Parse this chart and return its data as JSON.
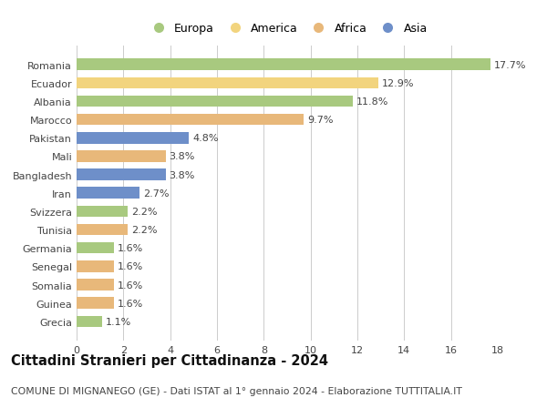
{
  "categories": [
    "Grecia",
    "Guinea",
    "Somalia",
    "Senegal",
    "Germania",
    "Tunisia",
    "Svizzera",
    "Iran",
    "Bangladesh",
    "Mali",
    "Pakistan",
    "Marocco",
    "Albania",
    "Ecuador",
    "Romania"
  ],
  "values": [
    1.1,
    1.6,
    1.6,
    1.6,
    1.6,
    2.2,
    2.2,
    2.7,
    3.8,
    3.8,
    4.8,
    9.7,
    11.8,
    12.9,
    17.7
  ],
  "continents": [
    "Europa",
    "Africa",
    "Africa",
    "Africa",
    "Europa",
    "Africa",
    "Europa",
    "Asia",
    "Asia",
    "Africa",
    "Asia",
    "Africa",
    "Europa",
    "America",
    "Europa"
  ],
  "colors": {
    "Europa": "#a8c97f",
    "America": "#f2d47e",
    "Africa": "#e8b87a",
    "Asia": "#6e8fc9"
  },
  "legend_order": [
    "Europa",
    "America",
    "Africa",
    "Asia"
  ],
  "title": "Cittadini Stranieri per Cittadinanza - 2024",
  "subtitle": "COMUNE DI MIGNANEGO (GE) - Dati ISTAT al 1° gennaio 2024 - Elaborazione TUTTITALIA.IT",
  "xlim": [
    0,
    18
  ],
  "xticks": [
    0,
    2,
    4,
    6,
    8,
    10,
    12,
    14,
    16,
    18
  ],
  "bar_height": 0.62,
  "background_color": "#ffffff",
  "grid_color": "#cccccc",
  "label_fontsize": 8.0,
  "title_fontsize": 10.5,
  "subtitle_fontsize": 7.8,
  "tick_fontsize": 8.0,
  "legend_fontsize": 9.0
}
